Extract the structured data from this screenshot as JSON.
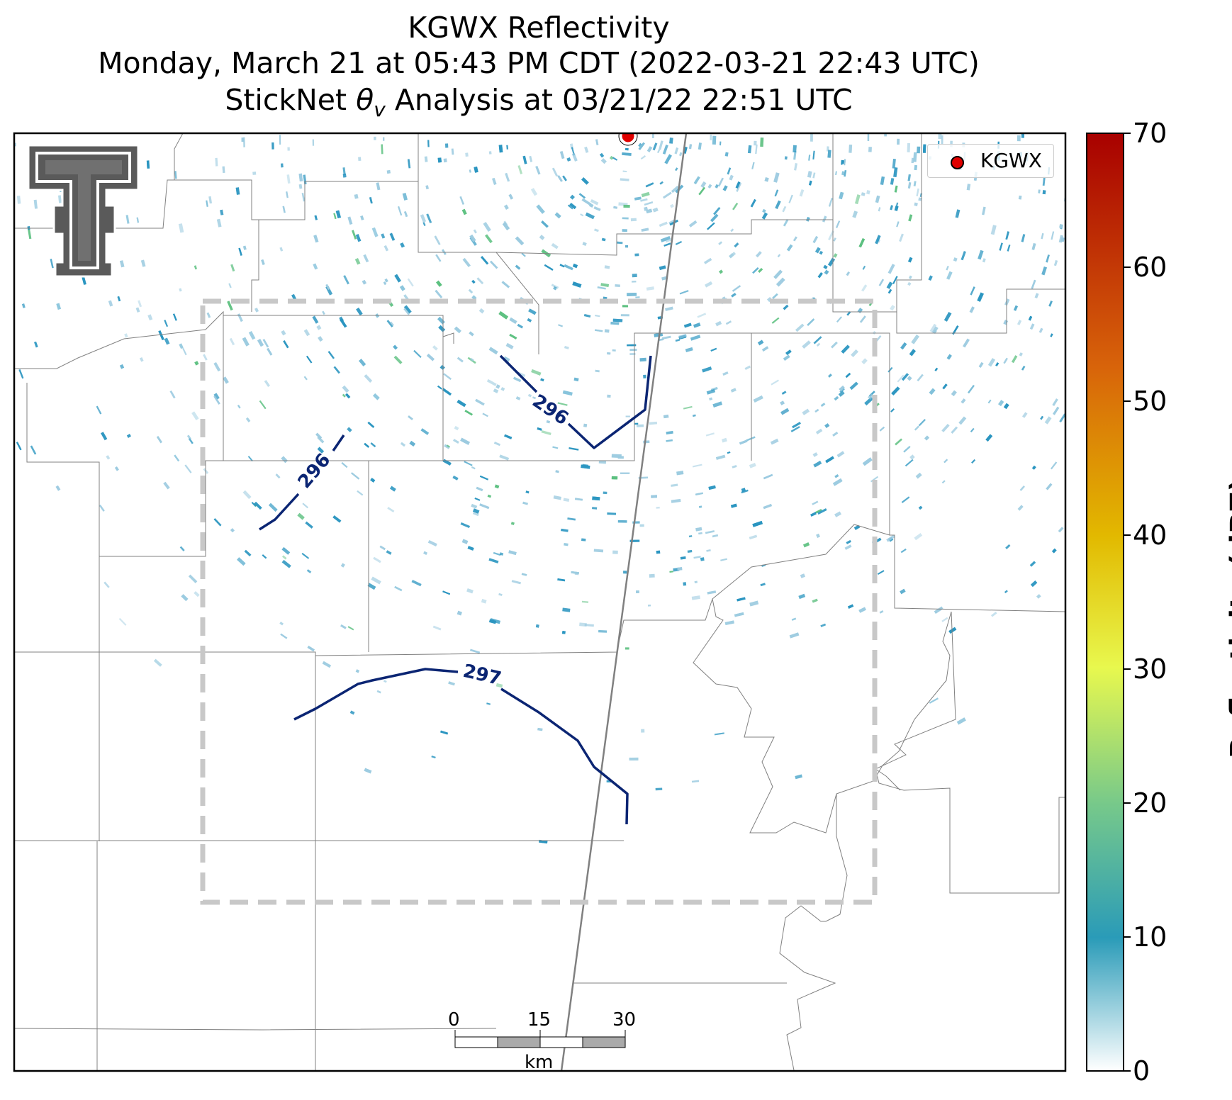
{
  "title": {
    "line1": "KGWX Reflectivity",
    "line2": "Monday, March 21 at 05:43 PM CDT (2022-03-21 22:43 UTC)",
    "line3_prefix": "StickNet ",
    "line3_symbol": "θ",
    "line3_sub": "v",
    "line3_suffix": " Analysis at 03/21/22 22:51 UTC"
  },
  "legend": {
    "radar_label": "KGWX",
    "radar_marker_color": "#e00000"
  },
  "colorbar": {
    "label": "Reflectivity (dBZ)",
    "ticks": [
      "0",
      "10",
      "20",
      "30",
      "40",
      "50",
      "60",
      "70"
    ],
    "min": 0,
    "max": 70,
    "stops": [
      "#ffffff",
      "#2a9bb8",
      "#77c98a",
      "#e8f84e",
      "#e2b900",
      "#d8640a",
      "#a80000"
    ]
  },
  "contours": [
    {
      "label": "296"
    },
    {
      "label": "296"
    },
    {
      "label": "297"
    }
  ],
  "scale_bar": {
    "ticks": [
      "0",
      "15",
      "30"
    ],
    "unit": "km"
  },
  "logo": {
    "alt": "Texas Tech double-T logo"
  },
  "colors": {
    "contour": "#0b2573",
    "analysis_box": "#c8c8c8",
    "echo": "#2a95c0",
    "echo_light": "#9ccbe0",
    "echo_green": "#5cc080"
  }
}
